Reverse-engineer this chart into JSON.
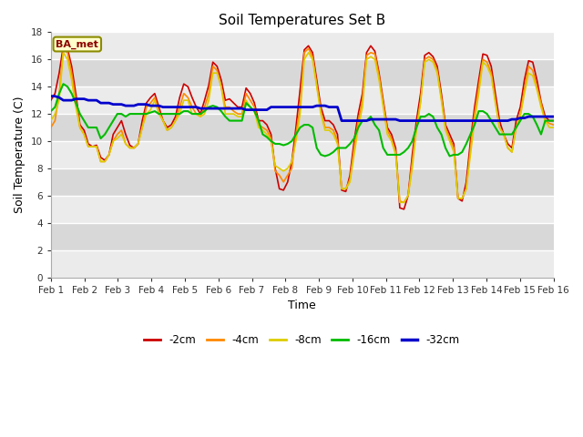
{
  "title": "Soil Temperatures Set B",
  "xlabel": "Time",
  "ylabel": "Soil Temperature (C)",
  "annotation": "BA_met",
  "xlim": [
    0,
    15
  ],
  "ylim": [
    0,
    18
  ],
  "yticks": [
    0,
    2,
    4,
    6,
    8,
    10,
    12,
    14,
    16,
    18
  ],
  "xtick_labels": [
    "Feb 1",
    "Feb 2",
    "Feb 3",
    "Feb 4",
    "Feb 5",
    "Feb 6",
    "Feb 7",
    "Feb 8",
    "Feb 9",
    "Feb 10",
    "Feb 11",
    "Feb 12",
    "Feb 13",
    "Feb 14",
    "Feb 15",
    "Feb 16"
  ],
  "series_colors": [
    "#cc0000",
    "#ff8800",
    "#ddcc00",
    "#00bb00",
    "#0000cc"
  ],
  "series_labels": [
    "-2cm",
    "-4cm",
    "-8cm",
    "-16cm",
    "-32cm"
  ],
  "series_linewidths": [
    1.2,
    1.2,
    1.2,
    1.5,
    2.0
  ],
  "background_color": "#ffffff",
  "band_colors_alt": [
    "#ebebeb",
    "#d8d8d8"
  ],
  "data_2cm": [
    13.0,
    13.5,
    15.0,
    17.0,
    16.8,
    15.5,
    13.5,
    11.2,
    10.8,
    9.8,
    9.6,
    9.7,
    8.8,
    8.6,
    9.0,
    10.5,
    11.0,
    11.5,
    10.5,
    9.7,
    9.5,
    9.8,
    11.5,
    12.8,
    13.2,
    13.5,
    12.5,
    11.5,
    11.0,
    11.2,
    11.8,
    13.2,
    14.2,
    14.0,
    13.2,
    12.5,
    12.0,
    13.0,
    14.1,
    15.8,
    15.5,
    14.5,
    13.0,
    13.1,
    12.8,
    12.5,
    12.5,
    13.9,
    13.5,
    12.8,
    11.5,
    11.5,
    11.2,
    10.5,
    8.0,
    6.5,
    6.4,
    7.0,
    8.5,
    11.0,
    13.8,
    16.7,
    17.0,
    16.5,
    14.5,
    12.5,
    11.5,
    11.5,
    11.2,
    10.5,
    6.4,
    6.3,
    7.5,
    10.0,
    12.0,
    13.5,
    16.5,
    17.0,
    16.6,
    15.0,
    13.0,
    11.0,
    10.5,
    9.5,
    5.1,
    5.0,
    6.0,
    9.0,
    11.5,
    13.5,
    16.3,
    16.5,
    16.2,
    15.5,
    13.5,
    11.2,
    10.5,
    9.8,
    5.8,
    5.6,
    7.0,
    10.0,
    12.5,
    14.5,
    16.4,
    16.3,
    15.5,
    13.5,
    11.5,
    10.5,
    9.8,
    9.5,
    11.5,
    12.5,
    14.5,
    15.9,
    15.8,
    14.5,
    12.9,
    11.8,
    11.5,
    11.5
  ],
  "data_4cm": [
    11.0,
    11.5,
    13.5,
    16.8,
    16.5,
    15.0,
    13.0,
    11.0,
    10.5,
    9.6,
    9.6,
    9.6,
    8.5,
    8.5,
    9.0,
    10.0,
    10.5,
    10.8,
    9.8,
    9.5,
    9.5,
    9.8,
    11.0,
    12.5,
    12.8,
    13.2,
    12.2,
    11.5,
    10.8,
    11.0,
    11.5,
    12.5,
    13.5,
    13.2,
    12.5,
    12.0,
    11.8,
    12.5,
    13.5,
    15.5,
    15.2,
    14.0,
    12.5,
    12.5,
    12.2,
    12.0,
    12.0,
    13.5,
    13.0,
    12.5,
    11.2,
    11.0,
    10.8,
    10.2,
    7.8,
    7.5,
    7.0,
    7.5,
    8.0,
    10.5,
    12.5,
    16.5,
    16.8,
    16.2,
    14.2,
    12.2,
    11.0,
    11.0,
    10.8,
    10.0,
    6.5,
    6.5,
    7.2,
    9.5,
    11.5,
    13.0,
    16.3,
    16.5,
    16.4,
    14.8,
    12.8,
    10.8,
    10.2,
    9.2,
    5.6,
    5.5,
    6.0,
    8.5,
    11.0,
    13.0,
    16.0,
    16.2,
    16.0,
    15.2,
    13.2,
    11.0,
    10.2,
    9.5,
    5.8,
    5.8,
    6.5,
    9.5,
    12.0,
    14.0,
    16.0,
    15.8,
    15.0,
    13.0,
    11.0,
    10.5,
    9.5,
    9.2,
    11.0,
    12.0,
    13.8,
    15.5,
    15.2,
    14.0,
    12.8,
    11.5,
    11.3,
    11.2
  ],
  "data_8cm": [
    11.5,
    12.0,
    13.0,
    16.5,
    16.0,
    14.5,
    12.5,
    11.0,
    10.5,
    9.6,
    9.6,
    9.6,
    8.5,
    8.5,
    9.0,
    10.0,
    10.2,
    10.5,
    9.8,
    9.5,
    9.5,
    9.8,
    11.0,
    12.0,
    12.3,
    13.0,
    12.0,
    11.5,
    10.8,
    11.0,
    11.5,
    12.0,
    13.0,
    13.0,
    12.0,
    12.0,
    11.8,
    12.0,
    13.0,
    15.0,
    15.0,
    14.0,
    12.0,
    12.0,
    12.0,
    11.8,
    11.8,
    13.0,
    12.5,
    12.2,
    11.0,
    10.8,
    10.5,
    10.0,
    8.2,
    8.0,
    7.8,
    8.0,
    8.5,
    10.0,
    12.0,
    16.0,
    16.5,
    16.0,
    14.0,
    12.0,
    10.8,
    10.8,
    10.5,
    9.8,
    6.5,
    6.5,
    7.0,
    9.0,
    11.0,
    12.5,
    16.0,
    16.2,
    16.0,
    14.5,
    12.5,
    10.5,
    10.0,
    9.0,
    5.5,
    5.5,
    6.0,
    8.0,
    10.8,
    12.8,
    15.8,
    16.0,
    15.8,
    15.0,
    13.0,
    10.8,
    10.0,
    9.2,
    5.8,
    5.8,
    6.5,
    9.0,
    11.5,
    13.5,
    15.8,
    15.5,
    14.8,
    12.8,
    11.0,
    10.5,
    9.5,
    9.2,
    11.0,
    11.8,
    13.5,
    15.0,
    14.8,
    13.8,
    12.5,
    11.5,
    11.0,
    11.0
  ],
  "data_16cm": [
    12.2,
    12.5,
    13.5,
    14.2,
    14.0,
    13.5,
    12.8,
    12.0,
    11.5,
    11.0,
    11.0,
    11.0,
    10.2,
    10.5,
    11.0,
    11.5,
    12.0,
    12.0,
    11.8,
    12.0,
    12.0,
    12.0,
    12.0,
    12.0,
    12.1,
    12.2,
    12.0,
    12.0,
    12.0,
    12.0,
    12.0,
    12.0,
    12.2,
    12.2,
    12.0,
    12.0,
    12.0,
    12.2,
    12.5,
    12.6,
    12.5,
    12.2,
    11.8,
    11.5,
    11.5,
    11.5,
    11.5,
    12.8,
    12.5,
    12.2,
    11.5,
    10.5,
    10.3,
    10.0,
    9.8,
    9.8,
    9.7,
    9.8,
    10.0,
    10.5,
    11.0,
    11.2,
    11.2,
    11.0,
    9.5,
    9.0,
    8.9,
    9.0,
    9.2,
    9.5,
    9.5,
    9.5,
    9.8,
    10.2,
    11.0,
    11.5,
    11.5,
    11.8,
    11.2,
    10.8,
    9.5,
    9.0,
    9.0,
    9.0,
    9.0,
    9.2,
    9.5,
    10.0,
    11.0,
    11.8,
    11.8,
    12.0,
    11.8,
    11.0,
    10.5,
    9.5,
    8.9,
    9.0,
    9.0,
    9.2,
    9.8,
    10.5,
    11.2,
    12.2,
    12.2,
    12.0,
    11.5,
    11.0,
    10.5,
    10.5,
    10.5,
    10.5,
    11.0,
    11.5,
    12.0,
    12.0,
    11.8,
    11.2,
    10.5,
    11.5,
    11.5,
    11.5
  ],
  "data_32cm": [
    13.3,
    13.3,
    13.2,
    13.0,
    13.0,
    13.0,
    13.1,
    13.1,
    13.1,
    13.0,
    13.0,
    13.0,
    12.8,
    12.8,
    12.8,
    12.7,
    12.7,
    12.7,
    12.6,
    12.6,
    12.6,
    12.7,
    12.7,
    12.7,
    12.6,
    12.6,
    12.6,
    12.5,
    12.5,
    12.5,
    12.5,
    12.5,
    12.5,
    12.5,
    12.5,
    12.5,
    12.4,
    12.4,
    12.4,
    12.4,
    12.4,
    12.4,
    12.4,
    12.4,
    12.4,
    12.4,
    12.4,
    12.3,
    12.3,
    12.3,
    12.3,
    12.3,
    12.3,
    12.5,
    12.5,
    12.5,
    12.5,
    12.5,
    12.5,
    12.5,
    12.5,
    12.5,
    12.5,
    12.5,
    12.6,
    12.6,
    12.6,
    12.5,
    12.5,
    12.5,
    11.5,
    11.5,
    11.5,
    11.5,
    11.5,
    11.5,
    11.5,
    11.6,
    11.6,
    11.6,
    11.6,
    11.6,
    11.6,
    11.6,
    11.5,
    11.5,
    11.5,
    11.5,
    11.5,
    11.5,
    11.5,
    11.5,
    11.5,
    11.5,
    11.5,
    11.5,
    11.5,
    11.5,
    11.5,
    11.5,
    11.5,
    11.5,
    11.5,
    11.5,
    11.5,
    11.5,
    11.5,
    11.5,
    11.5,
    11.5,
    11.5,
    11.6,
    11.6,
    11.7,
    11.7,
    11.8,
    11.8,
    11.8,
    11.8,
    11.8,
    11.8,
    11.8
  ]
}
